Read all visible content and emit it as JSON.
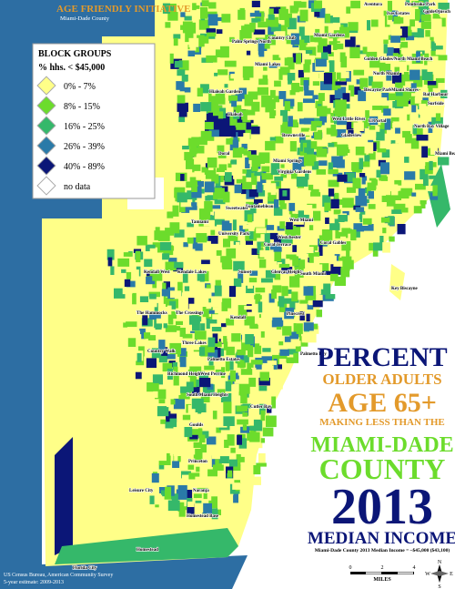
{
  "header": {
    "title": "AGE FRIENDLY INITIATIVE",
    "subtitle": "Miami-Dade County"
  },
  "legend": {
    "title": "BLOCK GROUPS",
    "subtitle": "% hhs. < $45,000",
    "items": [
      {
        "label": "0% - 7%",
        "color": "#ffff88"
      },
      {
        "label": "8% - 15%",
        "color": "#6cdc2c"
      },
      {
        "label": "16% - 25%",
        "color": "#35b86a"
      },
      {
        "label": "26% - 39%",
        "color": "#2a7aa8"
      },
      {
        "label": "40% - 89%",
        "color": "#0b1677"
      },
      {
        "label": "no data",
        "color": "#ffffff"
      }
    ]
  },
  "title_block": {
    "line1": "PERCENT",
    "line2": "OLDER ADULTS",
    "line3": "AGE 65+",
    "line4": "MAKING LESS THAN THE",
    "line5": "MIAMI-DADE",
    "line6": "COUNTY",
    "line7": "2013",
    "line8": "MEDIAN INCOME",
    "note": "Miami-Dade County 2013 Median Income = ~$45,000 ($43,100)"
  },
  "source": {
    "line1": "US Census Bureau, American Community Survey",
    "line2": "5-year estimate: 2009-2013"
  },
  "scale_bar": {
    "labels": [
      "0",
      "2",
      "4"
    ],
    "unit": "MILES"
  },
  "compass": {
    "n": "N",
    "s": "S",
    "e": "E",
    "w": "W"
  },
  "places": [
    "Aventura",
    "Pembroke Park",
    "Golden Beach",
    "Ojus",
    "Ives Estates",
    "Miami Gardens",
    "Palm Springs North",
    "Country Club",
    "Miami Lakes",
    "Golden Glades/North Miami Beach",
    "North Miami",
    "Hialeah Gardens",
    "Hialeah",
    "Biscayne Park",
    "Miami Shores",
    "Bal Harbour",
    "Surfside",
    "West Little River",
    "El Portal",
    "Gladeview",
    "Brownsville",
    "North Bay Village",
    "Miami Beach",
    "Doral",
    "Miami Springs",
    "Virginia Gardens",
    "Fontainebleau",
    "Sweetwater",
    "Tamiami",
    "University Park",
    "Westchester",
    "West Miami",
    "Coral Terrace",
    "Coral Gables",
    "Key Biscayne",
    "Kendall West",
    "Kendale Lakes",
    "Sunset",
    "Glenvar Heights",
    "South Miami",
    "The Hammocks",
    "The Crossings",
    "Kendall",
    "Pinecrest",
    "Three Lakes",
    "Country Walk",
    "Richmond Heights",
    "Palmetto Estates",
    "Palmetto Bay",
    "West Perrine",
    "South Miami Heights",
    "Cutler Bay",
    "Goulds",
    "Princeton",
    "Naranja",
    "Leisure City",
    "Homestead Base",
    "Homestead",
    "Florida City"
  ]
}
